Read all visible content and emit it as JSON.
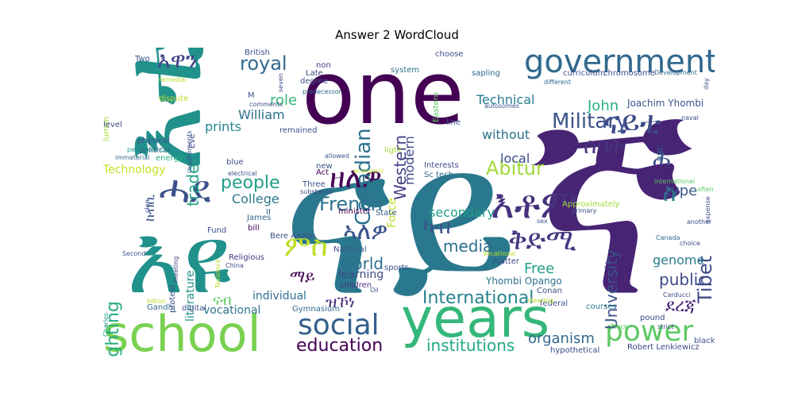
{
  "title": "Answer 2 WordCloud",
  "words": [
    "እቲ",
    "one",
    "ናይ",
    "ኛ",
    "years",
    "school",
    "እዩ",
    "government",
    "ናይቲ",
    "እቶም",
    "social",
    "power",
    "ሓደ",
    "እዋን",
    "ዘለዎ",
    "Military",
    "ኣለዎ",
    "ቅድሚ",
    "International",
    "French",
    "education",
    "ምስ",
    "Canadian",
    "Abitur",
    "ሰባት",
    "royal",
    "people",
    "institutions",
    "media",
    "Technical",
    "public",
    "ካብ",
    "world",
    "organism",
    "type",
    "Tibet",
    "University",
    "lighting",
    "trade",
    "John",
    "Free",
    "ደረጃ",
    "prints",
    "William",
    "secondary",
    "modern",
    "local",
    "Western",
    "ማይ",
    "vocational",
    "ናብ",
    "individual",
    "learning",
    "Technology",
    "ሰ",
    "ሐ",
    "role",
    "Force",
    "College",
    "literature",
    "ከብቢ",
    "ዝኾነ",
    "without",
    "genome",
    "Joachim Yhombi",
    "Yhombi Opango",
    "courses",
    "pound",
    "Bere Alston",
    "Robert Lenkiewicz",
    "Gymnasium",
    "Religious",
    "children",
    "minister",
    "State",
    "National",
    "sports",
    "Act",
    "Three",
    "substance",
    "Interests",
    "Sc tech",
    "system",
    "Late",
    "non",
    "degree",
    "predecessor",
    "British",
    "Two",
    "remedial",
    "lumen",
    "level",
    "physical",
    "performance",
    "immaterial",
    "political",
    "energy",
    "electrical",
    "blue",
    "bill",
    "James",
    "Fund",
    "II",
    "Gandhi",
    "billion",
    "digital",
    "Second",
    "Charles",
    "meeting",
    "protest",
    "China",
    "Tavistock",
    "Oil",
    "light",
    "new",
    "allowed",
    "economic",
    "choose",
    "sapling",
    "curriculum",
    "chromosome",
    "Development",
    "different",
    "autosomes",
    "line",
    "BBC",
    "naval",
    "day",
    "often",
    "expense",
    "another",
    "choice",
    "Canada",
    "primary",
    "sex",
    "matter",
    "federal",
    "Conan",
    "Carducci",
    "Block",
    "strict",
    "black",
    "hypothetical",
    "Approximately",
    "Eve",
    "requirements",
    "remained",
    "dispute",
    "comments",
    "seven",
    "Eastern",
    "M",
    "clan",
    "steering",
    "Vocational",
    "international"
  ]
}
